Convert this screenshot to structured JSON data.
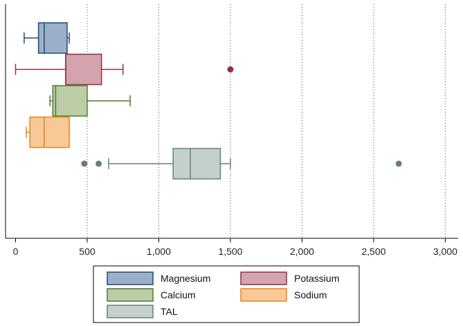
{
  "chart_data": {
    "type": "boxplot",
    "orientation": "horizontal",
    "title": "",
    "xlabel": "",
    "ylabel": "",
    "xlim": [
      -70,
      3090
    ],
    "x_ticks": [
      0,
      500,
      1000,
      1500,
      2000,
      2500,
      3000
    ],
    "x_tick_labels": [
      "0",
      "500",
      "1,000",
      "1,500",
      "2,000",
      "2,500",
      "3,000"
    ],
    "grid": "vertical dotted",
    "legend_position": "bottom",
    "series": [
      {
        "name": "Magnesium",
        "whisker_low": 60,
        "q1": 160,
        "median": 200,
        "q3": 360,
        "whisker_high": 375,
        "outliers": [],
        "fill": "#9bb0c8",
        "stroke": "#1f4a7a",
        "outlier_color": "#1f4a7a"
      },
      {
        "name": "Potassium",
        "whisker_low": 0,
        "q1": 350,
        "median": 350,
        "q3": 600,
        "whisker_high": 750,
        "outliers": [
          1500
        ],
        "fill": "#d3a4ae",
        "stroke": "#92303d",
        "outlier_color": "#92303d"
      },
      {
        "name": "Calcium",
        "whisker_low": 240,
        "q1": 260,
        "median": 280,
        "q3": 500,
        "whisker_high": 800,
        "outliers": [],
        "fill": "#bccca7",
        "stroke": "#4c7a2e",
        "outlier_color": "#4c7a2e"
      },
      {
        "name": "Sodium",
        "whisker_low": 75,
        "q1": 100,
        "median": 200,
        "q3": 375,
        "whisker_high": 375,
        "outliers": [],
        "fill": "#f7c996",
        "stroke": "#e8821c",
        "outlier_color": "#e8821c"
      },
      {
        "name": "TAL",
        "whisker_low": 650,
        "q1": 1100,
        "median": 1220,
        "q3": 1430,
        "whisker_high": 1500,
        "outliers": [
          480,
          580,
          2675
        ],
        "fill": "#c4d0cd",
        "stroke": "#647f7a",
        "outlier_color": "#647f7a"
      }
    ]
  }
}
